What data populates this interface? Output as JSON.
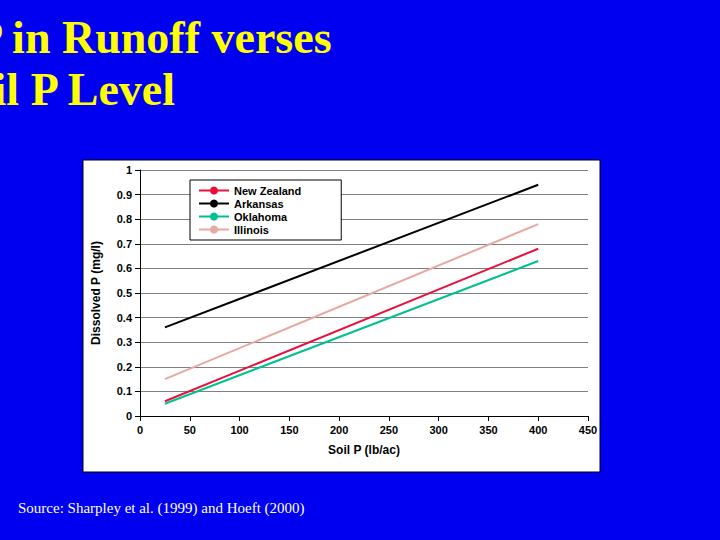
{
  "chart_data": {
    "type": "line",
    "title": "Dissolved P in Runoff verses Soil P Level",
    "source": "Source: Sharpley et al. (1999) and Hoeft (2000)",
    "x_label": "Soil P (lb/ac)",
    "y_label": "Dissolved P (mg/l)",
    "x": [
      25,
      400
    ],
    "series": [
      {
        "name": "New Zealand",
        "color": "#e8103a",
        "values": [
          0.06,
          0.68
        ]
      },
      {
        "name": "Arkansas",
        "color": "#000000",
        "values": [
          0.36,
          0.94
        ]
      },
      {
        "name": "Oklahoma",
        "color": "#00c090",
        "values": [
          0.05,
          0.63
        ]
      },
      {
        "name": "Illinois",
        "color": "#e8a8a0",
        "values": [
          0.15,
          0.78
        ]
      }
    ],
    "xlim": [
      0,
      450
    ],
    "xticks": [
      0,
      50,
      100,
      150,
      200,
      250,
      300,
      350,
      400,
      450
    ],
    "ylim": [
      0,
      1
    ],
    "yticks": [
      0,
      0.1,
      0.2,
      0.3,
      0.4,
      0.5,
      0.6,
      0.7,
      0.8,
      0.9,
      1
    ],
    "grid": true,
    "legend": "upper left"
  }
}
